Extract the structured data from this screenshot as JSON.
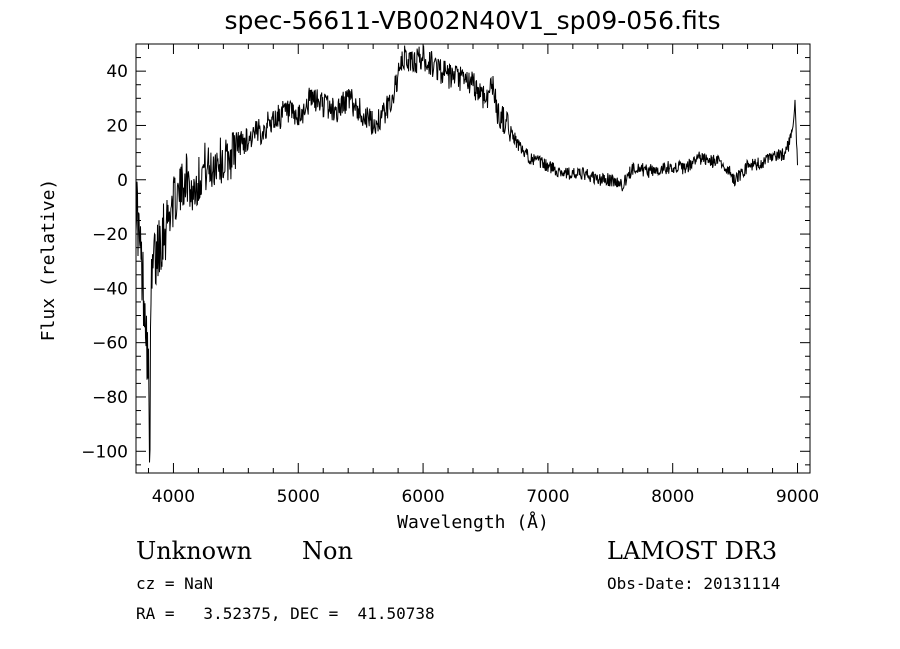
{
  "chart_data": {
    "type": "line",
    "title": "spec-56611-VB002N40V1_sp09-056.fits",
    "xlabel": "Wavelength (Å)",
    "ylabel": "Flux (relative)",
    "xlim": [
      3700,
      9100
    ],
    "ylim": [
      -108,
      50
    ],
    "x_ticks": [
      4000,
      5000,
      6000,
      7000,
      8000,
      9000
    ],
    "y_ticks": [
      -100,
      -80,
      -60,
      -40,
      -20,
      0,
      20,
      40
    ],
    "grid": false,
    "series": [
      {
        "color": "#000000",
        "x": [
          3700,
          3730,
          3760,
          3780,
          3800,
          3810,
          3820,
          3840,
          3860,
          3880,
          3900,
          3950,
          4000,
          4050,
          4100,
          4150,
          4200,
          4250,
          4300,
          4350,
          4400,
          4450,
          4500,
          4600,
          4700,
          4800,
          4900,
          5000,
          5100,
          5200,
          5300,
          5400,
          5500,
          5600,
          5700,
          5750,
          5800,
          5850,
          5900,
          5950,
          6000,
          6050,
          6100,
          6150,
          6200,
          6300,
          6400,
          6500,
          6560,
          6600,
          6650,
          6700,
          6800,
          6900,
          7000,
          7100,
          7200,
          7300,
          7400,
          7500,
          7600,
          7650,
          7700,
          7800,
          7900,
          8000,
          8100,
          8200,
          8300,
          8400,
          8450,
          8500,
          8600,
          8700,
          8800,
          8900,
          8950,
          8980,
          9000
        ],
        "y": [
          -5,
          -25,
          -40,
          -50,
          -75,
          -98,
          -45,
          -30,
          -30,
          -22,
          -20,
          -15,
          -8,
          -5,
          2,
          -5,
          0,
          5,
          3,
          8,
          6,
          8,
          13,
          15,
          18,
          22,
          25,
          22,
          30,
          28,
          25,
          30,
          25,
          20,
          25,
          30,
          38,
          45,
          43,
          44,
          45,
          43,
          42,
          40,
          38,
          37,
          35,
          30,
          35,
          24,
          22,
          18,
          10,
          7,
          5,
          3,
          2,
          2,
          0,
          0,
          -2,
          2,
          5,
          3,
          4,
          5,
          4,
          8,
          7,
          6,
          3,
          0,
          5,
          6,
          8,
          10,
          15,
          28,
          5
        ]
      }
    ]
  },
  "annotations": {
    "object_class": "Unknown",
    "subclass": "Non",
    "survey": "LAMOST DR3",
    "redshift": "cz = NaN",
    "obs_date": "Obs-Date: 20131114",
    "coords": "RA =   3.52375, DEC =  41.50738"
  },
  "colors": {
    "line": "#000000",
    "axes": "#000000",
    "background": "#ffffff"
  }
}
